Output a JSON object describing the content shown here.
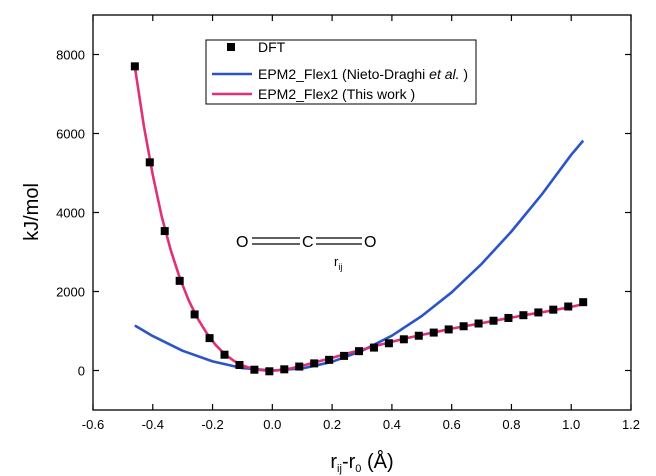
{
  "chart_data": {
    "type": "line",
    "title": "",
    "xlabel": {
      "main": "r",
      "sub1": "ij",
      "mid": "-r",
      "sub2": "0",
      "tail": " (Å)"
    },
    "ylabel": "kJ/mol",
    "xlim": [
      -0.6,
      1.2
    ],
    "ylim": [
      -1000,
      9000
    ],
    "x_ticks": [
      "-0.6",
      "-0.4",
      "-0.2",
      "0.0",
      "0.2",
      "0.4",
      "0.6",
      "0.8",
      "1.0",
      "1.2"
    ],
    "y_ticks": [
      "0",
      "2000",
      "4000",
      "6000",
      "8000"
    ],
    "legend_position": "top-center",
    "series": [
      {
        "name": "DFT",
        "kind": "scatter",
        "marker": "square",
        "color": "#000000",
        "x": [
          -0.46,
          -0.41,
          -0.36,
          -0.31,
          -0.26,
          -0.21,
          -0.16,
          -0.11,
          -0.06,
          -0.01,
          0.04,
          0.09,
          0.14,
          0.19,
          0.24,
          0.29,
          0.34,
          0.39,
          0.44,
          0.49,
          0.54,
          0.59,
          0.64,
          0.69,
          0.74,
          0.79,
          0.84,
          0.89,
          0.94,
          0.99,
          1.04
        ],
        "y": [
          7700,
          5270,
          3530,
          2270,
          1420,
          820,
          400,
          140,
          20,
          -20,
          30,
          100,
          180,
          270,
          370,
          490,
          580,
          690,
          790,
          880,
          960,
          1040,
          1120,
          1190,
          1260,
          1330,
          1400,
          1470,
          1540,
          1620,
          1730
        ]
      },
      {
        "name_parts": [
          "EPM2_Flex1 (Nieto-Draghi ",
          "et al.",
          " )"
        ],
        "kind": "line",
        "color": "#2a55c8",
        "x": [
          -0.46,
          -0.4,
          -0.3,
          -0.2,
          -0.1,
          0.0,
          0.1,
          0.2,
          0.3,
          0.4,
          0.5,
          0.6,
          0.7,
          0.8,
          0.9,
          1.0,
          1.04
        ],
        "y": [
          1140,
          870,
          500,
          230,
          60,
          0,
          50,
          220,
          500,
          880,
          1380,
          1980,
          2700,
          3520,
          4440,
          5460,
          5820
        ]
      },
      {
        "name": "EPM2_Flex2 (This work )",
        "kind": "line",
        "color": "#e0307a",
        "x": [
          -0.46,
          -0.43,
          -0.4,
          -0.37,
          -0.34,
          -0.31,
          -0.28,
          -0.25,
          -0.22,
          -0.19,
          -0.16,
          -0.13,
          -0.1,
          -0.07,
          -0.04,
          -0.01,
          0.02,
          0.06,
          0.1,
          0.15,
          0.2,
          0.25,
          0.3,
          0.35,
          0.4,
          0.45,
          0.5,
          0.55,
          0.6,
          0.65,
          0.7,
          0.75,
          0.8,
          0.85,
          0.9,
          0.95,
          1.0,
          1.04
        ],
        "y": [
          7700,
          6200,
          4950,
          3900,
          3050,
          2350,
          1780,
          1320,
          950,
          650,
          420,
          250,
          130,
          50,
          10,
          -5,
          5,
          50,
          120,
          220,
          320,
          430,
          530,
          630,
          730,
          820,
          900,
          980,
          1060,
          1130,
          1200,
          1270,
          1340,
          1410,
          1470,
          1540,
          1610,
          1680
        ]
      }
    ],
    "annotation": {
      "left": "O",
      "center": "C",
      "right": "O",
      "bond_label": "r",
      "bond_sub": "ij"
    }
  }
}
